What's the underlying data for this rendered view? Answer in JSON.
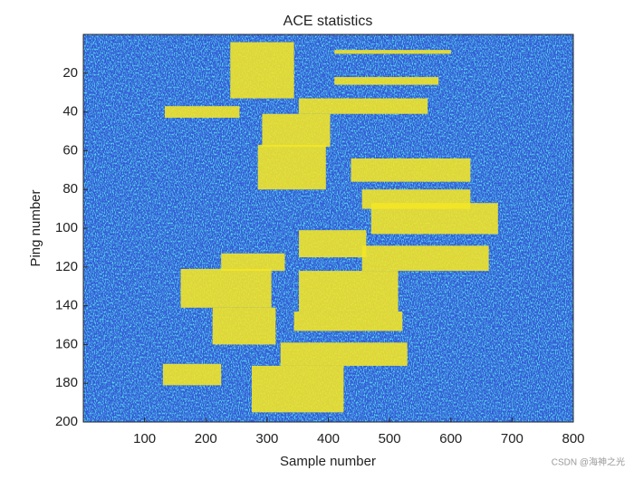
{
  "chart_data": {
    "type": "heatmap",
    "title": "ACE statistics",
    "x_label": "Sample number",
    "y_label": "Ping number",
    "xlim": [
      0,
      800
    ],
    "ylim": [
      0,
      200
    ],
    "y_reversed": true,
    "xticks": [
      100,
      200,
      300,
      400,
      500,
      600,
      700,
      800
    ],
    "yticks": [
      20,
      40,
      60,
      80,
      100,
      120,
      140,
      160,
      180,
      200
    ],
    "background_color": "#3358d6",
    "highlight_color": "#f5e625",
    "regions": [
      {
        "samples": [
          240,
          344
        ],
        "pings": [
          4,
          33
        ]
      },
      {
        "samples": [
          410,
          600
        ],
        "pings": [
          8,
          10
        ]
      },
      {
        "samples": [
          410,
          580
        ],
        "pings": [
          22,
          26
        ]
      },
      {
        "samples": [
          133,
          255
        ],
        "pings": [
          37,
          43
        ]
      },
      {
        "samples": [
          352,
          562
        ],
        "pings": [
          33,
          41
        ]
      },
      {
        "samples": [
          292,
          403
        ],
        "pings": [
          41,
          58
        ]
      },
      {
        "samples": [
          285,
          396
        ],
        "pings": [
          57,
          80
        ]
      },
      {
        "samples": [
          437,
          632
        ],
        "pings": [
          64,
          76
        ]
      },
      {
        "samples": [
          455,
          632
        ],
        "pings": [
          80,
          90
        ]
      },
      {
        "samples": [
          470,
          677
        ],
        "pings": [
          87,
          103
        ]
      },
      {
        "samples": [
          352,
          462
        ],
        "pings": [
          101,
          115
        ]
      },
      {
        "samples": [
          455,
          662
        ],
        "pings": [
          109,
          122
        ]
      },
      {
        "samples": [
          225,
          329
        ],
        "pings": [
          113,
          122
        ]
      },
      {
        "samples": [
          159,
          307
        ],
        "pings": [
          121,
          141
        ]
      },
      {
        "samples": [
          352,
          514
        ],
        "pings": [
          122,
          143
        ]
      },
      {
        "samples": [
          211,
          314
        ],
        "pings": [
          141,
          160
        ]
      },
      {
        "samples": [
          344,
          521
        ],
        "pings": [
          143,
          153
        ]
      },
      {
        "samples": [
          322,
          529
        ],
        "pings": [
          159,
          171
        ]
      },
      {
        "samples": [
          130,
          225
        ],
        "pings": [
          170,
          181
        ]
      },
      {
        "samples": [
          275,
          425
        ],
        "pings": [
          171,
          195
        ]
      }
    ],
    "watermark": "CSDN @海神之光"
  }
}
